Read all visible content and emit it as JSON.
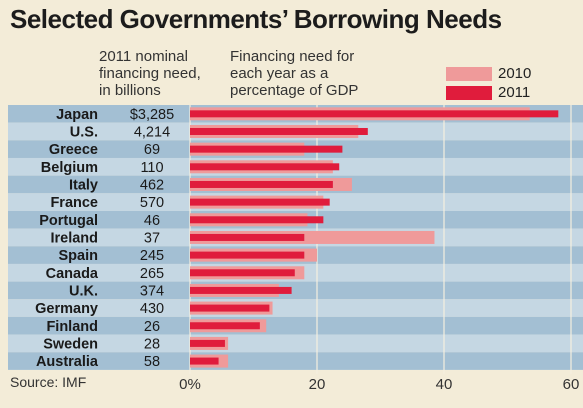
{
  "title": "Selected Governments’ Borrowing Needs",
  "header": {
    "col1": "2011 nominal\nfinancing need,\nin billions",
    "col2": "Financing need for\neach year as a\npercentage of GDP"
  },
  "source": "Source: IMF",
  "colors": {
    "s2010": "#ef9a9a",
    "s2011": "#e01c3c",
    "band_dark": "#a3bfd3",
    "band_light": "#c5d7e3"
  },
  "chart_data": {
    "type": "bar",
    "title": "Selected Governments’ Borrowing Needs",
    "orientation": "horizontal",
    "categories": [
      "Japan",
      "U.S.",
      "Greece",
      "Belgium",
      "Italy",
      "France",
      "Portugal",
      "Ireland",
      "Spain",
      "Canada",
      "U.K.",
      "Germany",
      "Finland",
      "Sweden",
      "Australia"
    ],
    "amounts": [
      "$3,285",
      "4,214",
      "69",
      "110",
      "462",
      "570",
      "46",
      "37",
      "245",
      "265",
      "374",
      "430",
      "26",
      "28",
      "58"
    ],
    "series": [
      {
        "name": "2010",
        "values": [
          53.5,
          26.5,
          18,
          22.5,
          25.5,
          21,
          18.5,
          38.5,
          20,
          18,
          14,
          13,
          12,
          6,
          6
        ]
      },
      {
        "name": "2011",
        "values": [
          58,
          28,
          24,
          23.5,
          22.5,
          22,
          21,
          18,
          18,
          16.5,
          16,
          12.5,
          11,
          5.5,
          4.5
        ]
      }
    ],
    "xlim": [
      0,
      60
    ],
    "xticks": [
      "0%",
      "20",
      "40",
      "60"
    ],
    "grid": true,
    "legend": "top-right"
  }
}
